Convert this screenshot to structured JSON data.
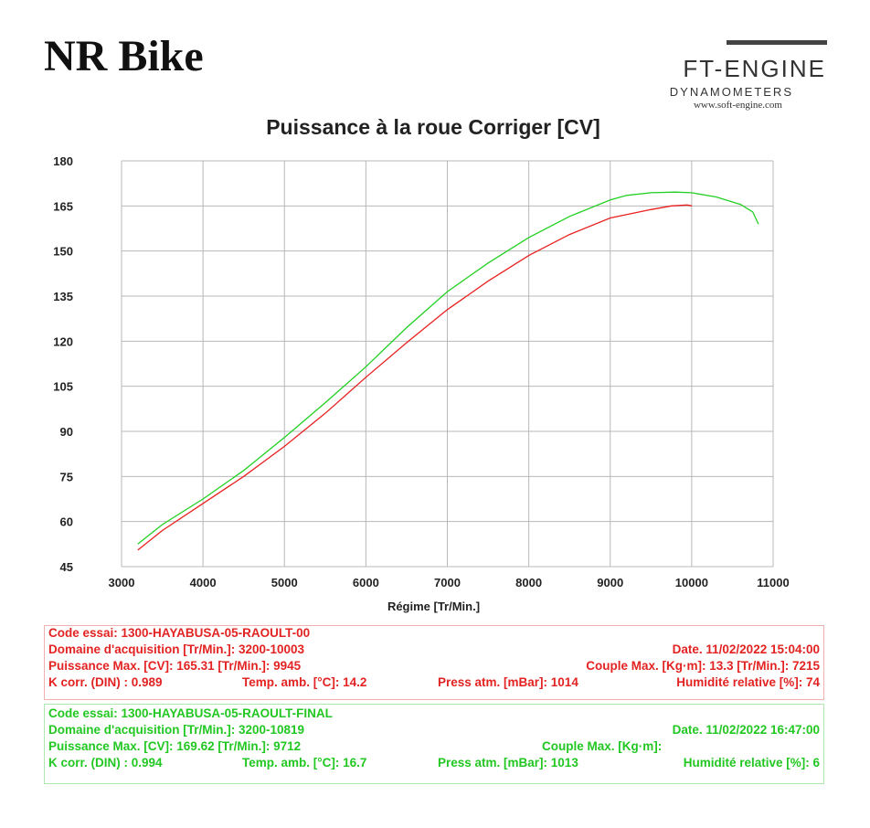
{
  "header": {
    "title": "NR Bike",
    "logo": {
      "main": "FT-ENGINE",
      "sub": "DYNAMOMETERS",
      "url": "www.soft-engine.com"
    }
  },
  "chart_data": {
    "type": "line",
    "title": "Puissance à la roue Corriger [CV]",
    "xlabel": "Régime [Tr/Min.]",
    "ylabel": "",
    "xlim": [
      3000,
      11000
    ],
    "ylim": [
      45,
      180
    ],
    "x_ticks": [
      "3000",
      "4000",
      "5000",
      "6000",
      "7000",
      "8000",
      "9000",
      "10000",
      "11000"
    ],
    "y_ticks": [
      "45",
      "60",
      "75",
      "90",
      "105",
      "120",
      "135",
      "150",
      "165",
      "180"
    ],
    "grid": true,
    "series": [
      {
        "color": "#22d022",
        "x": [
          3200,
          3500,
          4000,
          4500,
          5000,
          5500,
          6000,
          6500,
          7000,
          7500,
          8000,
          8500,
          9000,
          9200,
          9500,
          9800,
          10000,
          10300,
          10600,
          10750,
          10819
        ],
        "y": [
          52.5,
          59,
          67.5,
          77,
          88,
          99.5,
          111.5,
          124.5,
          136.5,
          146,
          154.5,
          161.5,
          167,
          168.5,
          169.4,
          169.6,
          169.4,
          168,
          165.5,
          163,
          159
        ]
      },
      {
        "color": "#e82020",
        "x": [
          3200,
          3500,
          4000,
          4500,
          5000,
          5500,
          6000,
          6500,
          7000,
          7500,
          8000,
          8500,
          9000,
          9500,
          9750,
          9945,
          10003
        ],
        "y": [
          50.5,
          57,
          66,
          75,
          85,
          96,
          108,
          119.5,
          130.5,
          140,
          148.5,
          155.5,
          161,
          163.8,
          165,
          165.31,
          165
        ]
      }
    ]
  },
  "info": {
    "red": {
      "code": "Code essai: 1300-HAYABUSA-05-RAOULT-00",
      "domaine": "Domaine d'acquisition [Tr/Min.]: 3200-10003",
      "date": "Date. 11/02/2022   15:04:00",
      "puissance": "Puissance Max. [CV]: 165.31   [Tr/Min.]: 9945",
      "couple": "Couple Max. [Kg·m]: 13.3   [Tr/Min.]: 7215",
      "kcorr": "K corr. (DIN) : 0.989",
      "temp": "Temp. amb. [°C]: 14.2",
      "press": "Press atm. [mBar]: 1014",
      "humid": "Humidité relative [%]: 74"
    },
    "green": {
      "code": "Code essai: 1300-HAYABUSA-05-RAOULT-FINAL",
      "domaine": "Domaine d'acquisition [Tr/Min.]: 3200-10819",
      "date": "Date. 11/02/2022   16:47:00",
      "puissance": "Puissance Max. [CV]: 169.62   [Tr/Min.]: 9712",
      "couple": "Couple Max. [Kg·m]:",
      "kcorr": "K corr. (DIN) : 0.994",
      "temp": "Temp. amb. [°C]: 16.7",
      "press": "Press atm. [mBar]: 1013",
      "humid": "Humidité relative [%]: 6"
    }
  }
}
